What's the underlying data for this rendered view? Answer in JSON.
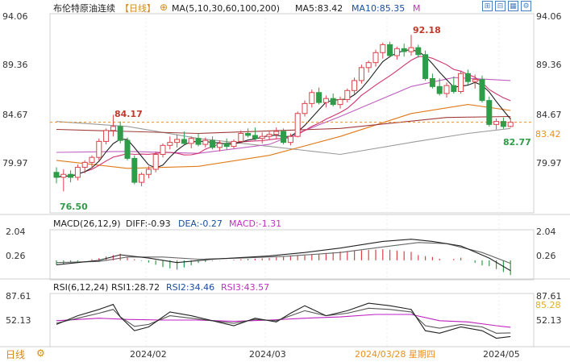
{
  "header": {
    "instrument": "布伦特原油连续",
    "period_tag": "【日线】",
    "ma_label": "MA(5,10,30,60,100,200)",
    "ma5": "MA5:83.42",
    "ma10": "MA10:85.35",
    "m_tag": "M"
  },
  "toolbar": {
    "icons": [
      "zoom-in-icon",
      "zoom-out-icon",
      "fit-icon",
      "settings-icon",
      "expand-icon"
    ],
    "glyphs": [
      "⊞",
      "⊟",
      "▦",
      "⚙",
      "⤢"
    ]
  },
  "footer": {
    "period_button": "日线",
    "dates": [
      "2024/02",
      "2024/03",
      "2024/03/28 星期四",
      "2024/05"
    ]
  },
  "colors": {
    "up": "#d9434a",
    "down": "#2e9c48",
    "ma5": "#222222",
    "ma10": "#d1336f",
    "ma30": "#a03a3a",
    "ma60": "#e07a18",
    "ma100": "#c060c0",
    "ma200": "#9a9a9a",
    "dif": "#222222",
    "dea": "#666666",
    "rsi1": "#222222",
    "rsi2": "#555555",
    "rsi3": "#c020c0",
    "price_tag": "#e89020",
    "rsi_tag": "#e0b020"
  },
  "chart_data": [
    {
      "type": "candlestick",
      "title": "布伦特原油连续【日线】",
      "ylim": [
        74.5,
        94.06
      ],
      "yticks": [
        "94.06",
        "89.36",
        "84.67",
        "79.97"
      ],
      "annotations": {
        "high": "92.18",
        "low": "76.50",
        "peak_left": "84.17",
        "last_low": "82.77",
        "last_price": "83.42",
        "last_price_value": 83.42
      },
      "ohlc": [
        [
          78.4,
          78.9,
          77.3,
          77.9
        ],
        [
          77.9,
          78.7,
          76.5,
          78.2
        ],
        [
          78.2,
          78.6,
          77.4,
          77.9
        ],
        [
          77.9,
          79.2,
          77.6,
          78.9
        ],
        [
          78.9,
          79.6,
          78.3,
          79.4
        ],
        [
          79.4,
          80.1,
          78.8,
          79.9
        ],
        [
          79.9,
          81.8,
          79.6,
          81.5
        ],
        [
          81.5,
          82.8,
          81.2,
          82.6
        ],
        [
          82.6,
          84.17,
          82.0,
          83.0
        ],
        [
          83.0,
          83.5,
          81.3,
          81.6
        ],
        [
          81.6,
          81.9,
          79.6,
          79.8
        ],
        [
          79.8,
          80.1,
          77.2,
          77.4
        ],
        [
          77.4,
          78.4,
          77.0,
          78.2
        ],
        [
          78.2,
          79.0,
          77.8,
          78.7
        ],
        [
          78.7,
          80.5,
          78.4,
          80.2
        ],
        [
          80.2,
          81.3,
          79.9,
          81.1
        ],
        [
          81.1,
          82.0,
          80.7,
          81.4
        ],
        [
          81.4,
          82.2,
          80.9,
          81.7
        ],
        [
          81.7,
          82.5,
          81.2,
          81.3
        ],
        [
          81.3,
          82.0,
          80.8,
          81.8
        ],
        [
          81.8,
          82.3,
          81.0,
          81.2
        ],
        [
          81.2,
          81.9,
          80.9,
          81.6
        ],
        [
          81.6,
          82.0,
          80.7,
          80.9
        ],
        [
          80.9,
          81.6,
          80.5,
          81.3
        ],
        [
          81.3,
          81.8,
          80.7,
          81.0
        ],
        [
          81.0,
          81.7,
          80.8,
          81.5
        ],
        [
          81.5,
          82.6,
          81.3,
          82.3
        ],
        [
          82.3,
          82.8,
          81.9,
          82.1
        ],
        [
          82.1,
          82.9,
          81.6,
          81.8
        ],
        [
          81.8,
          82.4,
          81.3,
          82.0
        ],
        [
          82.0,
          82.6,
          81.7,
          82.2
        ],
        [
          82.2,
          82.9,
          81.8,
          82.5
        ],
        [
          82.5,
          82.8,
          81.2,
          81.4
        ],
        [
          81.4,
          82.3,
          81.1,
          82.0
        ],
        [
          82.0,
          84.5,
          81.9,
          84.3
        ],
        [
          84.3,
          85.6,
          84.0,
          85.3
        ],
        [
          85.3,
          86.7,
          84.9,
          86.4
        ],
        [
          86.4,
          86.9,
          85.2,
          85.4
        ],
        [
          85.4,
          86.1,
          84.9,
          85.8
        ],
        [
          85.8,
          86.3,
          85.0,
          85.2
        ],
        [
          85.2,
          86.0,
          84.8,
          85.7
        ],
        [
          85.7,
          86.8,
          85.4,
          86.6
        ],
        [
          86.6,
          87.9,
          86.2,
          87.6
        ],
        [
          87.6,
          89.2,
          87.3,
          88.9
        ],
        [
          88.9,
          89.6,
          88.4,
          89.4
        ],
        [
          89.4,
          90.7,
          89.0,
          90.4
        ],
        [
          90.4,
          91.4,
          89.8,
          91.2
        ],
        [
          91.2,
          91.5,
          89.9,
          90.1
        ],
        [
          90.1,
          91.0,
          89.7,
          90.8
        ],
        [
          90.8,
          91.3,
          90.0,
          90.5
        ],
        [
          90.5,
          92.18,
          90.1,
          90.9
        ],
        [
          90.9,
          91.2,
          89.9,
          90.2
        ],
        [
          90.2,
          90.6,
          87.6,
          87.8
        ],
        [
          87.8,
          88.3,
          86.8,
          87.0
        ],
        [
          87.0,
          87.8,
          86.1,
          86.3
        ],
        [
          86.3,
          87.4,
          85.9,
          87.1
        ],
        [
          87.1,
          88.0,
          86.3,
          86.5
        ],
        [
          86.5,
          88.6,
          86.3,
          88.3
        ],
        [
          88.3,
          88.7,
          87.2,
          87.5
        ],
        [
          87.5,
          88.2,
          86.8,
          87.7
        ],
        [
          87.7,
          88.1,
          85.4,
          85.6
        ],
        [
          85.6,
          86.0,
          83.0,
          83.2
        ],
        [
          83.2,
          83.8,
          82.7,
          83.5
        ],
        [
          83.5,
          83.9,
          82.77,
          83.0
        ],
        [
          83.0,
          83.9,
          82.9,
          83.42
        ]
      ],
      "ma": {
        "MA5_last": 83.42,
        "MA10_last": 85.35,
        "ma30": [
          [
            0,
            82.7
          ],
          [
            20,
            82.3
          ],
          [
            40,
            82.8
          ],
          [
            55,
            83.9
          ],
          [
            64,
            84.0
          ]
        ],
        "ma60": [
          [
            0,
            79.6
          ],
          [
            10,
            78.8
          ],
          [
            20,
            79.0
          ],
          [
            30,
            80.1
          ],
          [
            40,
            82.0
          ],
          [
            50,
            84.3
          ],
          [
            58,
            85.2
          ],
          [
            64,
            84.6
          ]
        ],
        "ma100": [
          [
            0,
            80.4
          ],
          [
            10,
            80.5
          ],
          [
            20,
            80.3
          ],
          [
            30,
            81.2
          ],
          [
            40,
            84.0
          ],
          [
            50,
            87.0
          ],
          [
            56,
            87.9
          ],
          [
            64,
            87.6
          ]
        ],
        "ma200": [
          [
            0,
            83.5
          ],
          [
            10,
            83.0
          ],
          [
            20,
            81.8
          ],
          [
            30,
            81.0
          ],
          [
            40,
            80.2
          ],
          [
            50,
            81.4
          ],
          [
            58,
            82.3
          ],
          [
            64,
            82.8
          ]
        ]
      }
    },
    {
      "type": "macd",
      "title": "MACD(26,12,9)",
      "labels": {
        "name": "MACD(26,12,9)",
        "diff": "DIFF:-0.93",
        "dea": "DEA:-0.27",
        "macd": "MACD:-1.31"
      },
      "ylim": [
        -1.6,
        2.6
      ],
      "yticks": [
        "2.04",
        "0.26"
      ],
      "dif": [
        [
          0,
          -0.4
        ],
        [
          6,
          0.0
        ],
        [
          9,
          0.5
        ],
        [
          13,
          0.2
        ],
        [
          17,
          -0.2
        ],
        [
          22,
          0.1
        ],
        [
          30,
          0.4
        ],
        [
          35,
          0.7
        ],
        [
          40,
          1.1
        ],
        [
          46,
          1.7
        ],
        [
          50,
          1.9
        ],
        [
          53,
          1.7
        ],
        [
          57,
          1.3
        ],
        [
          61,
          0.2
        ],
        [
          64,
          -0.93
        ]
      ],
      "dea": [
        [
          0,
          -0.2
        ],
        [
          6,
          -0.1
        ],
        [
          10,
          0.3
        ],
        [
          15,
          0.3
        ],
        [
          20,
          0.1
        ],
        [
          26,
          0.2
        ],
        [
          32,
          0.35
        ],
        [
          40,
          0.7
        ],
        [
          46,
          1.2
        ],
        [
          51,
          1.6
        ],
        [
          55,
          1.5
        ],
        [
          60,
          0.7
        ],
        [
          64,
          -0.27
        ]
      ]
    },
    {
      "type": "rsi",
      "title": "RSI(6,12,24)",
      "labels": {
        "name": "RSI(6,12,24)",
        "rsi1": "RSI1:28.72",
        "rsi2": "RSI2:34.46",
        "rsi3": "RSI3:43.57"
      },
      "ylim": [
        15,
        95
      ],
      "yticks": [
        "87.61",
        "52.13"
      ],
      "right_tag": "85.28",
      "rsi1": [
        [
          0,
          48
        ],
        [
          3,
          62
        ],
        [
          6,
          72
        ],
        [
          8,
          80
        ],
        [
          9,
          60
        ],
        [
          11,
          38
        ],
        [
          13,
          44
        ],
        [
          16,
          68
        ],
        [
          19,
          62
        ],
        [
          22,
          54
        ],
        [
          25,
          46
        ],
        [
          28,
          58
        ],
        [
          31,
          52
        ],
        [
          33,
          66
        ],
        [
          35,
          78
        ],
        [
          38,
          62
        ],
        [
          41,
          70
        ],
        [
          44,
          82
        ],
        [
          47,
          78
        ],
        [
          50,
          72
        ],
        [
          52,
          38
        ],
        [
          54,
          34
        ],
        [
          57,
          44
        ],
        [
          60,
          38
        ],
        [
          62,
          26
        ],
        [
          64,
          28.72
        ]
      ],
      "rsi2": [
        [
          0,
          50
        ],
        [
          3,
          58
        ],
        [
          6,
          66
        ],
        [
          8,
          72
        ],
        [
          9,
          60
        ],
        [
          11,
          45
        ],
        [
          13,
          48
        ],
        [
          16,
          62
        ],
        [
          19,
          58
        ],
        [
          22,
          54
        ],
        [
          25,
          50
        ],
        [
          28,
          56
        ],
        [
          31,
          54
        ],
        [
          33,
          62
        ],
        [
          35,
          70
        ],
        [
          38,
          62
        ],
        [
          41,
          66
        ],
        [
          44,
          74
        ],
        [
          47,
          72
        ],
        [
          50,
          68
        ],
        [
          52,
          46
        ],
        [
          54,
          42
        ],
        [
          57,
          48
        ],
        [
          60,
          44
        ],
        [
          62,
          34
        ],
        [
          64,
          34.46
        ]
      ],
      "rsi3": [
        [
          0,
          54
        ],
        [
          6,
          58
        ],
        [
          10,
          56
        ],
        [
          15,
          55
        ],
        [
          20,
          55
        ],
        [
          25,
          53
        ],
        [
          30,
          55
        ],
        [
          35,
          58
        ],
        [
          40,
          60
        ],
        [
          45,
          64
        ],
        [
          50,
          64
        ],
        [
          54,
          54
        ],
        [
          58,
          52
        ],
        [
          62,
          46
        ],
        [
          64,
          43.57
        ]
      ]
    }
  ]
}
